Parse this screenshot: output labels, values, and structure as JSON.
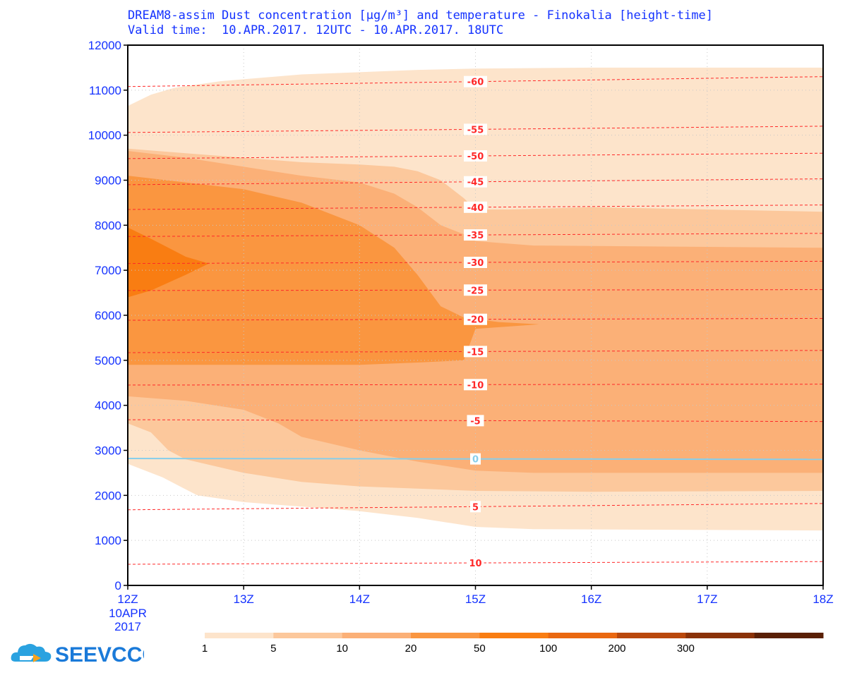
{
  "header": {
    "title_line1": "DREAM8-assim Dust concentration [µg/m³] and temperature - Finokalia [height-time]",
    "title_line2": "Valid time:  10.APR.2017. 12UTC - 10.APR.2017. 18UTC"
  },
  "logo": {
    "text": "SEEVCCC"
  },
  "chart_data": {
    "type": "height-time contour",
    "x_ticks": [
      "12Z",
      "13Z",
      "14Z",
      "15Z",
      "16Z",
      "17Z",
      "18Z"
    ],
    "x_date_label": [
      "10APR",
      "2017"
    ],
    "x_range_hours": [
      0,
      6
    ],
    "y_ticks": [
      0,
      1000,
      2000,
      3000,
      4000,
      5000,
      6000,
      7000,
      8000,
      9000,
      10000,
      11000,
      12000
    ],
    "ylim": [
      0,
      12000
    ],
    "grid": true,
    "colorbar": {
      "labels": [
        "1",
        "5",
        "10",
        "20",
        "50",
        "100",
        "200",
        "300"
      ],
      "colors": [
        "#fde4cb",
        "#fcc89c",
        "#fbb077",
        "#fa9640",
        "#f97d12",
        "#ea6810",
        "#b9480c",
        "#8a3208",
        "#5a2006"
      ]
    },
    "dust_levels": [
      {
        "min": 1,
        "color": "#fde4cb",
        "top": [
          [
            0,
            10650
          ],
          [
            0.2,
            10900
          ],
          [
            0.4,
            11050
          ],
          [
            0.8,
            11200
          ],
          [
            1.5,
            11350
          ],
          [
            2.5,
            11450
          ],
          [
            3,
            11480
          ],
          [
            4,
            11500
          ],
          [
            6,
            11500
          ]
        ],
        "bottom": [
          [
            0,
            2700
          ],
          [
            0.3,
            2400
          ],
          [
            0.6,
            2000
          ],
          [
            1,
            1850
          ],
          [
            1.5,
            1750
          ],
          [
            2,
            1650
          ],
          [
            2.5,
            1500
          ],
          [
            3,
            1300
          ],
          [
            3.5,
            1250
          ],
          [
            6,
            1220
          ]
        ]
      },
      {
        "min": 5,
        "color": "#fcc89c",
        "top": [
          [
            0,
            9700
          ],
          [
            0.5,
            9600
          ],
          [
            1,
            9500
          ],
          [
            1.5,
            9400
          ],
          [
            2,
            9350
          ],
          [
            2.3,
            9300
          ],
          [
            2.5,
            9200
          ],
          [
            2.7,
            9000
          ],
          [
            2.9,
            8600
          ],
          [
            3,
            8350
          ],
          [
            3.3,
            8350
          ],
          [
            4,
            8400
          ],
          [
            6,
            8300
          ]
        ],
        "bottom": [
          [
            0,
            3600
          ],
          [
            0.2,
            3400
          ],
          [
            0.35,
            3000
          ],
          [
            0.5,
            2800
          ],
          [
            1,
            2500
          ],
          [
            1.5,
            2300
          ],
          [
            2,
            2200
          ],
          [
            2.5,
            2150
          ],
          [
            3,
            2100
          ],
          [
            4,
            2080
          ],
          [
            6,
            2100
          ]
        ]
      },
      {
        "min": 10,
        "color": "#fbb077",
        "top": [
          [
            0,
            9650
          ],
          [
            0.5,
            9500
          ],
          [
            1,
            9300
          ],
          [
            1.5,
            9100
          ],
          [
            2,
            8950
          ],
          [
            2.3,
            8700
          ],
          [
            2.5,
            8400
          ],
          [
            2.7,
            8000
          ],
          [
            2.9,
            7800
          ],
          [
            3,
            7650
          ],
          [
            3.5,
            7550
          ],
          [
            6,
            7500
          ]
        ],
        "bottom": [
          [
            0,
            4200
          ],
          [
            0.5,
            4100
          ],
          [
            1,
            3900
          ],
          [
            1.3,
            3600
          ],
          [
            1.5,
            3300
          ],
          [
            2,
            3000
          ],
          [
            2.5,
            2750
          ],
          [
            3,
            2550
          ],
          [
            3.5,
            2500
          ],
          [
            4,
            2500
          ],
          [
            6,
            2500
          ]
        ]
      },
      {
        "min": 20,
        "color": "#fa9640",
        "top": [
          [
            0,
            9100
          ],
          [
            0.5,
            8950
          ],
          [
            1,
            8800
          ],
          [
            1.5,
            8500
          ],
          [
            2,
            8000
          ],
          [
            2.3,
            7500
          ],
          [
            2.5,
            6900
          ],
          [
            2.7,
            6200
          ],
          [
            2.9,
            5950
          ],
          [
            3.2,
            5850
          ],
          [
            3.55,
            5800
          ],
          [
            3,
            5700
          ],
          [
            2.9,
            5000
          ],
          [
            2.5,
            4950
          ],
          [
            2,
            4900
          ],
          [
            1,
            4900
          ],
          [
            0.3,
            4900
          ],
          [
            0,
            4900
          ]
        ],
        "bottom": [
          [
            0,
            4900
          ],
          [
            6,
            4900
          ]
        ]
      },
      {
        "min": 50,
        "color": "#f97d12",
        "top": [
          [
            0,
            7950
          ],
          [
            0.2,
            7700
          ],
          [
            0.5,
            7300
          ],
          [
            0.7,
            7150
          ],
          [
            0.5,
            6900
          ],
          [
            0.2,
            6550
          ],
          [
            0,
            6400
          ]
        ],
        "bottom": []
      }
    ],
    "temperature_isotherms": [
      {
        "label": "-60",
        "y0": 11080,
        "y1": 11300
      },
      {
        "label": "-55",
        "y0": 10060,
        "y1": 10200
      },
      {
        "label": "-50",
        "y0": 9480,
        "y1": 9600
      },
      {
        "label": "-45",
        "y0": 8900,
        "y1": 9030
      },
      {
        "label": "-40",
        "y0": 8350,
        "y1": 8450
      },
      {
        "label": "-35",
        "y0": 7750,
        "y1": 7820
      },
      {
        "label": "-30",
        "y0": 7150,
        "y1": 7200
      },
      {
        "label": "-25",
        "y0": 6550,
        "y1": 6570
      },
      {
        "label": "-20",
        "y0": 5890,
        "y1": 5930
      },
      {
        "label": "-15",
        "y0": 5170,
        "y1": 5220
      },
      {
        "label": "-10",
        "y0": 4450,
        "y1": 4470
      },
      {
        "label": "-5",
        "y0": 3680,
        "y1": 3640
      },
      {
        "label": "0",
        "y0": 2820,
        "y1": 2800,
        "freezing": true
      },
      {
        "label": "5",
        "y0": 1680,
        "y1": 1820
      },
      {
        "label": "10",
        "y0": 470,
        "y1": 530
      }
    ],
    "colors": {
      "axis_text": "#1432ff",
      "isotherm": "#ff2828",
      "freezing_line": "#87ceeb",
      "grid": "#c8c8c8"
    }
  }
}
